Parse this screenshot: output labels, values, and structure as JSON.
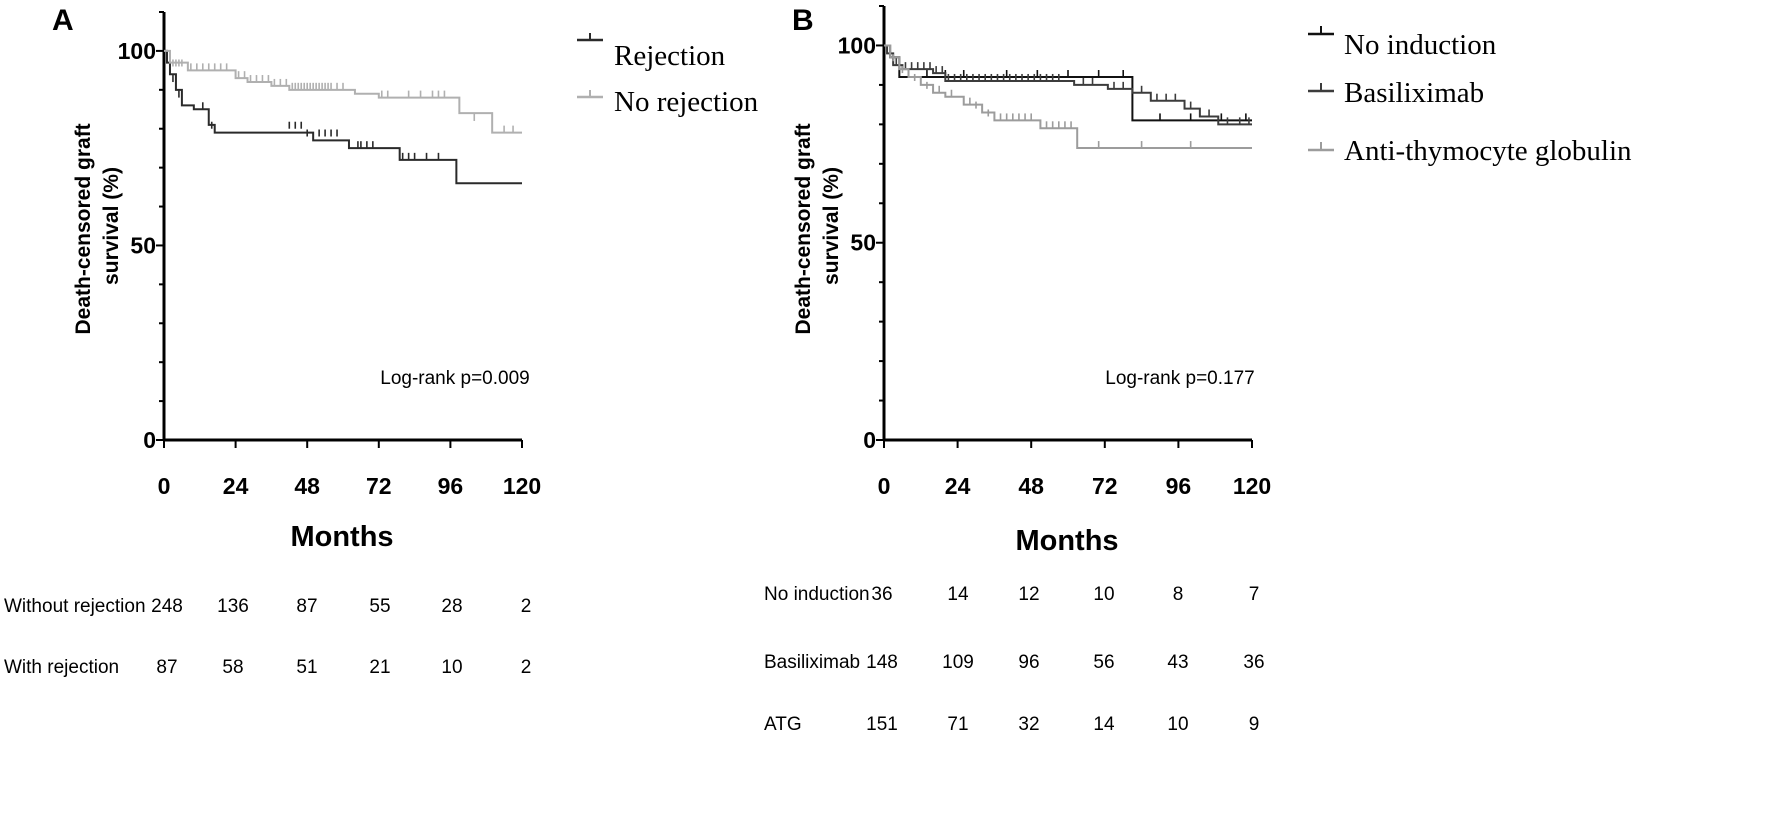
{
  "chart_data": [
    {
      "panel": "A",
      "type": "line",
      "ylabel_lines": [
        "Death-censored graft",
        "survival (%)"
      ],
      "xlabel": "Months",
      "xlim": [
        0,
        120
      ],
      "ylim": [
        0,
        110
      ],
      "xticks": [
        0,
        24,
        48,
        72,
        96,
        120
      ],
      "yticks": [
        0,
        50,
        100
      ],
      "legend_position": "top-right",
      "annotation": "Log-rank p=0.009",
      "series": [
        {
          "name": "Rejection",
          "color": "#2a2a2a",
          "steps": [
            [
              0,
              100
            ],
            [
              1,
              97
            ],
            [
              2,
              94
            ],
            [
              4,
              90
            ],
            [
              6,
              86
            ],
            [
              10,
              85
            ],
            [
              15,
              81
            ],
            [
              17,
              79
            ],
            [
              47,
              79
            ],
            [
              50,
              77
            ],
            [
              61,
              77
            ],
            [
              62,
              75
            ],
            [
              78,
              75
            ],
            [
              79,
              72
            ],
            [
              96,
              72
            ],
            [
              98,
              66
            ],
            [
              120,
              66
            ]
          ],
          "censored": [
            [
              3,
              92
            ],
            [
              5,
              88
            ],
            [
              13,
              85
            ],
            [
              16,
              80
            ],
            [
              42,
              80
            ],
            [
              44,
              80
            ],
            [
              46,
              80
            ],
            [
              48,
              78
            ],
            [
              52,
              78
            ],
            [
              54,
              78
            ],
            [
              56,
              78
            ],
            [
              58,
              78
            ],
            [
              65,
              75
            ],
            [
              66,
              75
            ],
            [
              68,
              75
            ],
            [
              70,
              75
            ],
            [
              80,
              72
            ],
            [
              82,
              72
            ],
            [
              84,
              72
            ],
            [
              88,
              72
            ],
            [
              92,
              72
            ]
          ]
        },
        {
          "name": "No rejection",
          "color": "#b0b0b0",
          "steps": [
            [
              0,
              100
            ],
            [
              2,
              97
            ],
            [
              8,
              95
            ],
            [
              22,
              95
            ],
            [
              24,
              93
            ],
            [
              28,
              92
            ],
            [
              36,
              91
            ],
            [
              42,
              90
            ],
            [
              62,
              90
            ],
            [
              64,
              89
            ],
            [
              70,
              89
            ],
            [
              72,
              88
            ],
            [
              96,
              88
            ],
            [
              99,
              84
            ],
            [
              110,
              79
            ],
            [
              120,
              79
            ]
          ],
          "censored": [
            [
              3,
              96
            ],
            [
              4,
              96
            ],
            [
              5,
              96
            ],
            [
              6,
              96
            ],
            [
              9,
              95
            ],
            [
              11,
              95
            ],
            [
              13,
              95
            ],
            [
              15,
              95
            ],
            [
              17,
              95
            ],
            [
              19,
              95
            ],
            [
              21,
              95
            ],
            [
              25,
              93
            ],
            [
              27,
              93
            ],
            [
              29,
              92
            ],
            [
              31,
              92
            ],
            [
              33,
              92
            ],
            [
              35,
              92
            ],
            [
              37,
              91
            ],
            [
              39,
              91
            ],
            [
              41,
              91
            ],
            [
              43,
              90
            ],
            [
              44,
              90
            ],
            [
              45,
              90
            ],
            [
              46,
              90
            ],
            [
              47,
              90
            ],
            [
              48,
              90
            ],
            [
              49,
              90
            ],
            [
              50,
              90
            ],
            [
              51,
              90
            ],
            [
              52,
              90
            ],
            [
              53,
              90
            ],
            [
              54,
              90
            ],
            [
              55,
              90
            ],
            [
              56,
              90
            ],
            [
              58,
              90
            ],
            [
              60,
              90
            ],
            [
              73,
              88
            ],
            [
              75,
              88
            ],
            [
              82,
              88
            ],
            [
              86,
              88
            ],
            [
              90,
              88
            ],
            [
              92,
              88
            ],
            [
              94,
              88
            ],
            [
              104,
              82
            ],
            [
              114,
              79
            ],
            [
              117,
              79
            ]
          ]
        }
      ],
      "risk_table": {
        "at_months": [
          0,
          24,
          48,
          72,
          96,
          120
        ],
        "rows": [
          {
            "label": "Without rejection",
            "values": [
              "248",
              "136",
              "87",
              "55",
              "28",
              "2"
            ]
          },
          {
            "label": "With rejection",
            "values": [
              "87",
              "58",
              "51",
              "21",
              "10",
              "2"
            ]
          }
        ]
      }
    },
    {
      "panel": "B",
      "type": "line",
      "ylabel_lines": [
        "Death-censored graft",
        "survival (%)"
      ],
      "xlabel": "Months",
      "xlim": [
        0,
        120
      ],
      "ylim": [
        0,
        110
      ],
      "xticks": [
        0,
        24,
        48,
        72,
        96,
        120
      ],
      "yticks": [
        0,
        50,
        100
      ],
      "legend_position": "top-right",
      "annotation": "Log-rank p=0.177",
      "series": [
        {
          "name": "No induction",
          "color": "#111111",
          "steps": [
            [
              0,
              100
            ],
            [
              2,
              97
            ],
            [
              5,
              92
            ],
            [
              80,
              92
            ],
            [
              81,
              81
            ],
            [
              120,
              81
            ]
          ],
          "censored": [
            [
              3,
              95
            ],
            [
              8,
              92
            ],
            [
              14,
              92
            ],
            [
              20,
              92
            ],
            [
              26,
              92
            ],
            [
              40,
              92
            ],
            [
              50,
              92
            ],
            [
              60,
              92
            ],
            [
              70,
              92
            ],
            [
              78,
              92
            ],
            [
              90,
              81
            ],
            [
              100,
              81
            ],
            [
              110,
              81
            ],
            [
              118,
              81
            ]
          ]
        },
        {
          "name": "Basiliximab",
          "color": "#3c3c3c",
          "steps": [
            [
              0,
              100
            ],
            [
              1,
              98
            ],
            [
              3,
              95
            ],
            [
              6,
              94
            ],
            [
              16,
              93
            ],
            [
              20,
              91
            ],
            [
              60,
              91
            ],
            [
              62,
              90
            ],
            [
              72,
              90
            ],
            [
              73,
              89
            ],
            [
              80,
              89
            ],
            [
              81,
              88
            ],
            [
              86,
              88
            ],
            [
              87,
              86
            ],
            [
              96,
              86
            ],
            [
              98,
              84
            ],
            [
              102,
              84
            ],
            [
              103,
              82
            ],
            [
              108,
              82
            ],
            [
              109,
              80
            ],
            [
              120,
              80
            ]
          ],
          "censored": [
            [
              2,
              97
            ],
            [
              4,
              95
            ],
            [
              7,
              94
            ],
            [
              9,
              94
            ],
            [
              11,
              94
            ],
            [
              13,
              94
            ],
            [
              15,
              94
            ],
            [
              17,
              93
            ],
            [
              19,
              93
            ],
            [
              21,
              91
            ],
            [
              23,
              91
            ],
            [
              25,
              91
            ],
            [
              27,
              91
            ],
            [
              29,
              91
            ],
            [
              31,
              91
            ],
            [
              33,
              91
            ],
            [
              35,
              91
            ],
            [
              37,
              91
            ],
            [
              39,
              91
            ],
            [
              41,
              91
            ],
            [
              43,
              91
            ],
            [
              45,
              91
            ],
            [
              47,
              91
            ],
            [
              49,
              91
            ],
            [
              51,
              91
            ],
            [
              53,
              91
            ],
            [
              55,
              91
            ],
            [
              57,
              91
            ],
            [
              65,
              90
            ],
            [
              68,
              90
            ],
            [
              75,
              89
            ],
            [
              78,
              89
            ],
            [
              84,
              88
            ],
            [
              89,
              86
            ],
            [
              92,
              86
            ],
            [
              95,
              86
            ],
            [
              100,
              84
            ],
            [
              106,
              82
            ],
            [
              112,
              80
            ],
            [
              116,
              80
            ],
            [
              119,
              80
            ]
          ]
        },
        {
          "name": "Anti-thymocyte globulin",
          "color": "#9c9c9c",
          "steps": [
            [
              0,
              100
            ],
            [
              2,
              97
            ],
            [
              5,
              94
            ],
            [
              8,
              92
            ],
            [
              12,
              90
            ],
            [
              16,
              88
            ],
            [
              20,
              87
            ],
            [
              26,
              85
            ],
            [
              32,
              83
            ],
            [
              36,
              81
            ],
            [
              50,
              81
            ],
            [
              51,
              79
            ],
            [
              62,
              79
            ],
            [
              63,
              74
            ],
            [
              120,
              74
            ]
          ],
          "censored": [
            [
              3,
              96
            ],
            [
              6,
              93
            ],
            [
              10,
              91
            ],
            [
              14,
              89
            ],
            [
              18,
              88
            ],
            [
              22,
              87
            ],
            [
              28,
              85
            ],
            [
              30,
              84
            ],
            [
              34,
              82
            ],
            [
              38,
              81
            ],
            [
              40,
              81
            ],
            [
              42,
              81
            ],
            [
              44,
              81
            ],
            [
              46,
              81
            ],
            [
              48,
              81
            ],
            [
              53,
              79
            ],
            [
              55,
              79
            ],
            [
              57,
              79
            ],
            [
              59,
              79
            ],
            [
              61,
              79
            ],
            [
              70,
              74
            ],
            [
              84,
              74
            ],
            [
              100,
              74
            ]
          ]
        }
      ],
      "risk_table": {
        "at_months": [
          0,
          24,
          48,
          72,
          96,
          120
        ],
        "rows": [
          {
            "label": "No induction",
            "values": [
              "36",
              "14",
              "12",
              "10",
              "8",
              "7"
            ]
          },
          {
            "label": "Basiliximab",
            "values": [
              "148",
              "109",
              "96",
              "56",
              "43",
              "36"
            ]
          },
          {
            "label": "ATG",
            "values": [
              "151",
              "71",
              "32",
              "14",
              "10",
              "9"
            ]
          }
        ]
      }
    }
  ]
}
